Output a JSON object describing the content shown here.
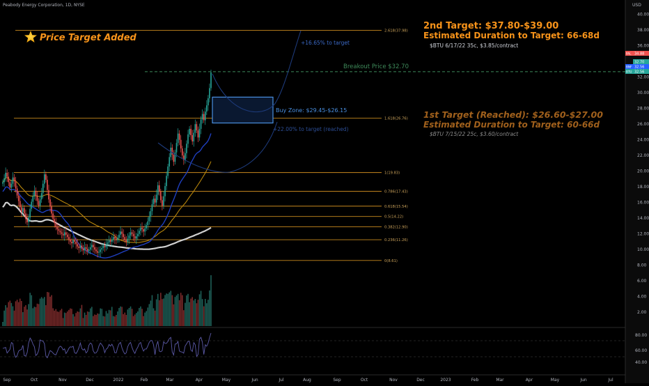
{
  "header": {
    "symbol_title": "Peabody Energy Corporation, 1D, NYSE",
    "currency": "USD"
  },
  "colors": {
    "background": "#000000",
    "candle_up": "#26a69a",
    "candle_down": "#ef5350",
    "fib_line": "#c98a1e",
    "orange_text": "#f7931a",
    "brown_text": "#a0601c",
    "blue_line": "#2962ff",
    "ma_white": "#d0d0d0",
    "ma_orange": "#b8860b",
    "ma_blue": "#1f3fbf",
    "green_text": "#3e8a5a",
    "buy_zone": "#4a90e2",
    "rsi_line": "#5c5aa8"
  },
  "annotations": {
    "badge_text": "Price Target Added",
    "target2_title": "2nd Target: $37.80-$39.00",
    "target2_duration": "Estimated Duration to Target: 66-68d",
    "target2_option": "$BTU 6/17/22 35c, $3.85/contract",
    "target1_title": "1st Target (Reached): $26.60-$27.00",
    "target1_duration": "Estimated Duration to Target: 60-66d",
    "target1_option": "$BTU 7/15/22 25c, $3.60/contract",
    "breakout": "Breakout Price $32.70",
    "buy_zone": "Buy Zone: $29.45-$26.15",
    "projection_upper": "+16.65% to target",
    "projection_lower": "+22.00% to target (reached)"
  },
  "chart_data": {
    "type": "candlestick",
    "x_axis_labels": [
      "Sep",
      "Oct",
      "Nov",
      "Dec",
      "2022",
      "Feb",
      "Mar",
      "Apr",
      "May",
      "Jun",
      "Jul",
      "Aug",
      "Sep",
      "Oct",
      "Nov",
      "Dec",
      "2023",
      "Feb",
      "Mar",
      "Apr",
      "May",
      "Jun",
      "Jul"
    ],
    "y_axis_labels": [
      "40.00",
      "38.00",
      "36.00",
      "34.00",
      "32.00",
      "30.00",
      "28.00",
      "26.00",
      "24.00",
      "22.00",
      "20.00",
      "18.00",
      "16.00",
      "14.00",
      "12.00",
      "10.00",
      "8.00",
      "6.00",
      "4.00",
      "2.00"
    ],
    "ylim": [
      0,
      41.4
    ],
    "fib_levels": [
      {
        "label": "2.618(37.98)",
        "value": 37.98
      },
      {
        "label": "1.618(26.76)",
        "value": 26.76
      },
      {
        "label": "1(19.83)",
        "value": 19.83
      },
      {
        "label": "0.786(17.43)",
        "value": 17.43
      },
      {
        "label": "0.618(15.54)",
        "value": 15.54
      },
      {
        "label": "0.5(14.22)",
        "value": 14.22
      },
      {
        "label": "0.382(12.90)",
        "value": 12.9
      },
      {
        "label": "0.236(11.26)",
        "value": 11.26
      },
      {
        "label": "0(8.61)",
        "value": 8.61
      }
    ],
    "breakout_price": 32.7,
    "buy_zone": {
      "top": 29.45,
      "bottom": 26.15
    },
    "price_tags": [
      {
        "label": "34.88",
        "value": 34.88,
        "color": "#ef5350",
        "prefix": "PAL"
      },
      {
        "label": "32.70",
        "value": 32.7,
        "color": "#26a69a",
        "prefix": ""
      },
      {
        "label": "32.56",
        "value": 32.2,
        "color": "#2962ff",
        "prefix": "BNF"
      },
      {
        "label": "32.56",
        "value": 31.7,
        "color": "#26a69a",
        "prefix": "BTU"
      }
    ],
    "closes": [
      18.6,
      19.1,
      19.8,
      19.3,
      18.6,
      17.9,
      18.4,
      19.2,
      18.7,
      17.8,
      16.9,
      16.2,
      15.4,
      14.8,
      15.3,
      14.6,
      13.9,
      13.5,
      14.1,
      15.2,
      16.1,
      16.8,
      17.5,
      16.9,
      16.2,
      15.6,
      16.4,
      17.2,
      18.4,
      19.6,
      18.9,
      17.6,
      16.4,
      15.5,
      14.6,
      13.9,
      13.4,
      12.9,
      12.6,
      12.4,
      12.2,
      12.0,
      11.8,
      12.2,
      11.9,
      11.6,
      11.3,
      11.0,
      10.8,
      11.2,
      11.0,
      10.7,
      10.4,
      10.2,
      10.5,
      10.1,
      9.9,
      10.3,
      10.1,
      9.8,
      10.0,
      10.3,
      10.6,
      10.3,
      10.0,
      9.8,
      9.6,
      9.7,
      10.0,
      10.2,
      10.5,
      10.3,
      10.7,
      10.9,
      11.2,
      11.0,
      11.3,
      11.6,
      11.4,
      11.2,
      11.5,
      11.9,
      12.3,
      12.0,
      11.6,
      11.2,
      11.0,
      11.4,
      11.8,
      12.2,
      12.0,
      11.7,
      11.4,
      11.7,
      12.0,
      12.4,
      12.8,
      12.6,
      12.3,
      12.7,
      13.1,
      13.6,
      14.2,
      14.9,
      15.8,
      16.5,
      16.0,
      17.0,
      18.2,
      17.4,
      16.3,
      15.6,
      16.8,
      18.1,
      19.4,
      20.6,
      21.8,
      23.0,
      22.1,
      21.2,
      22.4,
      23.6,
      24.8,
      24.0,
      22.9,
      22.0,
      21.4,
      22.3,
      23.5,
      24.7,
      25.4,
      24.6,
      23.8,
      24.9,
      26.0,
      25.2,
      24.3,
      25.4,
      26.6,
      27.3,
      26.5,
      27.6,
      28.4,
      29.3,
      30.6,
      32.6
    ]
  }
}
